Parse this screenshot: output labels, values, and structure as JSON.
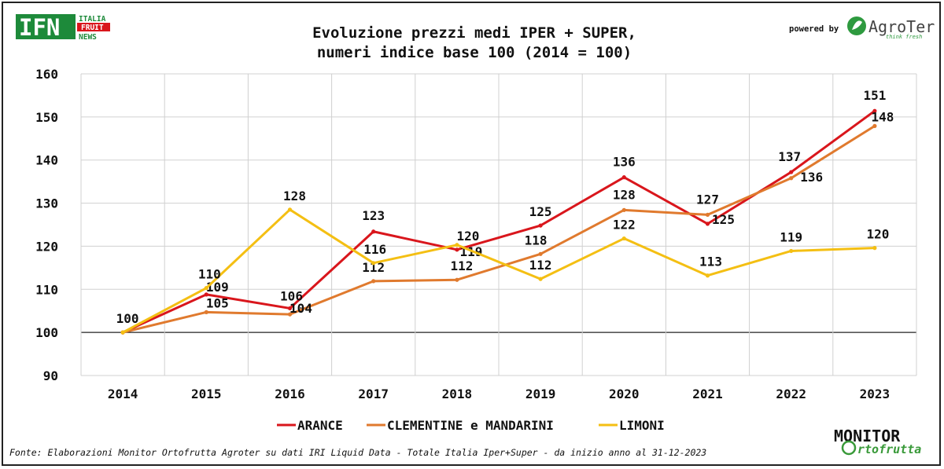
{
  "branding": {
    "ifn_main": "IFN",
    "ifn_line1": "ITALIA",
    "ifn_line2": "FRUIT",
    "ifn_line3": "NEWS",
    "powered_by": "powered by",
    "agroter_name": "AgroTer",
    "agroter_tagline": "think fresh",
    "monitor_line1": "MONITOR",
    "monitor_line2": "rtofrutta"
  },
  "source_note": "Fonte: Elaborazioni Monitor Ortofrutta Agroter su dati IRI Liquid Data - Totale Italia Iper+Super -  da inizio anno al 31-12-2023",
  "chart_data": {
    "type": "line",
    "title": "Evoluzione prezzi medi IPER + SUPER,",
    "subtitle": "numeri indice base 100 (2014 = 100)",
    "xlabel": "",
    "ylabel": "",
    "categories": [
      "2014",
      "2015",
      "2016",
      "2017",
      "2018",
      "2019",
      "2020",
      "2021",
      "2022",
      "2023"
    ],
    "ylim": [
      90,
      160
    ],
    "yticks": [
      90,
      100,
      110,
      120,
      130,
      140,
      150,
      160
    ],
    "grid": true,
    "baseline": 100,
    "legend_position": "bottom",
    "series": [
      {
        "name": "ARANCE",
        "color": "#d9161c",
        "values": [
          100,
          108.8,
          105.6,
          123.4,
          119.2,
          124.8,
          136.0,
          125.2,
          137.2,
          151.4
        ],
        "labels": [
          "",
          "109",
          "106",
          "123",
          "119",
          "125",
          "136",
          "125",
          "137",
          "151"
        ]
      },
      {
        "name": "CLEMENTINE e MANDARINI",
        "color": "#e07a2e",
        "values": [
          100,
          104.7,
          104.2,
          111.9,
          112.2,
          118.2,
          128.4,
          127.3,
          135.8,
          147.9
        ],
        "labels": [
          "",
          "105",
          "104",
          "112",
          "112",
          "118",
          "128",
          "127",
          "136",
          "148"
        ]
      },
      {
        "name": "LIMONI",
        "color": "#f4bf13",
        "values": [
          100,
          110.3,
          128.5,
          116.1,
          120.3,
          112.4,
          121.8,
          113.2,
          118.9,
          119.6
        ],
        "labels": [
          "100",
          "110",
          "128",
          "116",
          "120",
          "112",
          "122",
          "113",
          "119",
          "120"
        ]
      }
    ]
  }
}
